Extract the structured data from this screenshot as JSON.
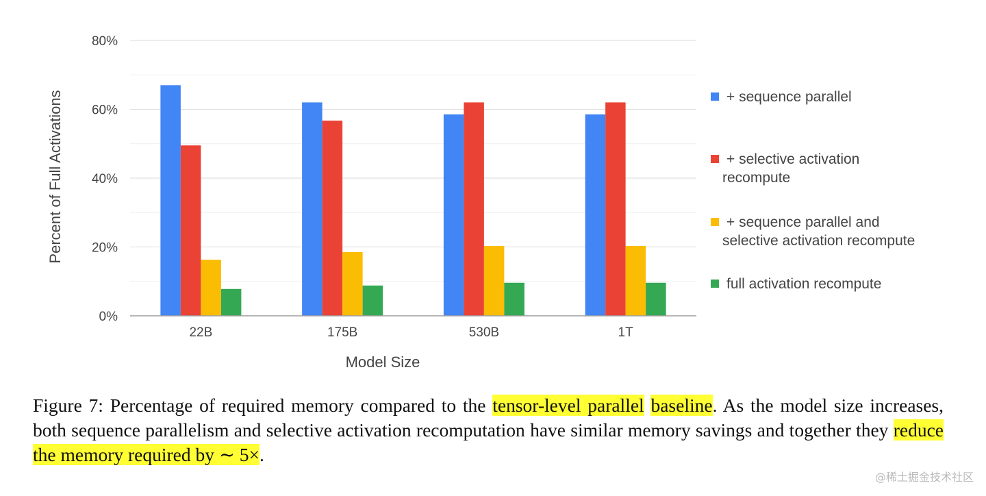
{
  "chart_data": {
    "type": "bar",
    "categories": [
      "22B",
      "175B",
      "530B",
      "1T"
    ],
    "series": [
      {
        "name": "+ sequence parallel",
        "color": "#4285f4",
        "values": [
          67,
          62,
          58.5,
          58.5
        ]
      },
      {
        "name": "+ selective activation recompute",
        "color": "#ea4335",
        "values": [
          49.5,
          56.7,
          62,
          62
        ]
      },
      {
        "name": "+ sequence parallel and selective activation recompute",
        "color": "#fbbc04",
        "values": [
          16.3,
          18.5,
          20.3,
          20.3
        ]
      },
      {
        "name": "full activation recompute",
        "color": "#34a853",
        "values": [
          7.8,
          8.8,
          9.6,
          9.6
        ]
      }
    ],
    "xlabel": "Model Size",
    "ylabel": "Percent of Full Activations",
    "ylim": [
      0,
      80
    ],
    "yticks": [
      "0%",
      "20%",
      "40%",
      "60%",
      "80%"
    ],
    "grid": true,
    "legend_position": "right"
  },
  "legend": {
    "lines": [
      [
        "+ sequence parallel"
      ],
      [
        "+ selective activation",
        "recompute"
      ],
      [
        "+ sequence parallel and",
        "selective activation recompute"
      ],
      [
        "full activation recompute"
      ]
    ]
  },
  "caption": {
    "p1": "Figure 7: Percentage of required memory compared to the ",
    "h1": "tensor-level parallel",
    "sp": " ",
    "h2": "baseline",
    "p2": ". As the model size increases, both sequence parallelism and selective activation recomputation have similar memory savings and together they ",
    "h3": "reduce the memory required by ∼ 5×",
    "p3": "."
  },
  "watermark": "@稀土掘金技术社区"
}
